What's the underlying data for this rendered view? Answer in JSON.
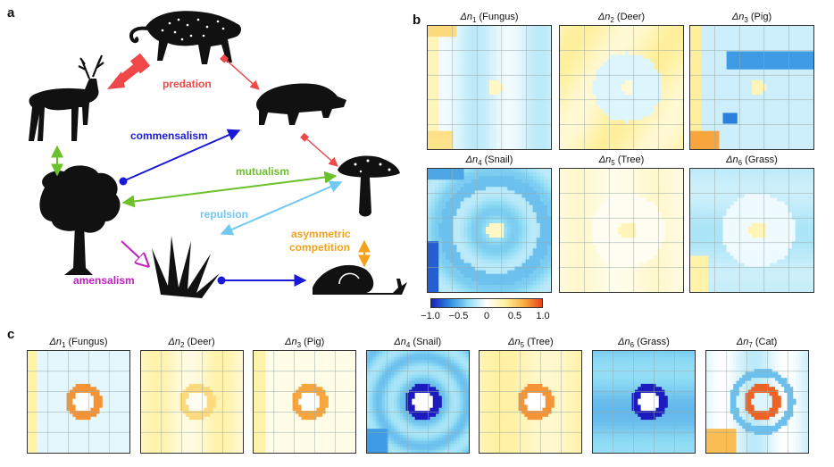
{
  "panel_labels": {
    "a": "a",
    "b": "b",
    "c": "c"
  },
  "interactions": {
    "predation": "predation",
    "commensalism": "commensalism",
    "mutualism": "mutualism",
    "repulsion": "repulsion",
    "asymmetric_line1": "asymmetric",
    "asymmetric_line2": "competition",
    "amensalism": "amensalism"
  },
  "colors": {
    "predation": "#f04848",
    "commensalism": "#1a1ad6",
    "mutualism": "#6cc02a",
    "repulsion": "#72c8f2",
    "competition": "#f5a21b",
    "amensalism": "#c21fc2"
  },
  "panel_b": [
    {
      "symbol": "Δn",
      "index": "1",
      "name": "(Fungus)"
    },
    {
      "symbol": "Δn",
      "index": "2",
      "name": "(Deer)"
    },
    {
      "symbol": "Δn",
      "index": "3",
      "name": "(Pig)"
    },
    {
      "symbol": "Δn",
      "index": "4",
      "name": "(Snail)"
    },
    {
      "symbol": "Δn",
      "index": "5",
      "name": "(Tree)"
    },
    {
      "symbol": "Δn",
      "index": "6",
      "name": "(Grass)"
    }
  ],
  "panel_c": [
    {
      "symbol": "Δn",
      "index": "1",
      "name": "(Fungus)"
    },
    {
      "symbol": "Δn",
      "index": "2",
      "name": "(Deer)"
    },
    {
      "symbol": "Δn",
      "index": "3",
      "name": "(Pig)"
    },
    {
      "symbol": "Δn",
      "index": "4",
      "name": "(Snail)"
    },
    {
      "symbol": "Δn",
      "index": "5",
      "name": "(Tree)"
    },
    {
      "symbol": "Δn",
      "index": "6",
      "name": "(Grass)"
    },
    {
      "symbol": "Δn",
      "index": "7",
      "name": "(Cat)"
    }
  ],
  "colorbar": {
    "ticks": [
      "−1.0",
      "−0.5",
      "0",
      "0.5",
      "1.0"
    ],
    "range": [
      -1.0,
      1.0
    ],
    "colors": [
      "#1c1cbe",
      "#2a8be0",
      "#8fdcf5",
      "#ffffff",
      "#fff1a0",
      "#f9b040",
      "#e8401a"
    ]
  }
}
